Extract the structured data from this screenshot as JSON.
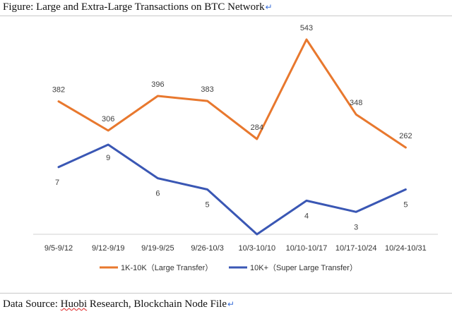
{
  "figure_title": "Figure: Large and Extra-Large Transactions on BTC Network",
  "paragraph_mark": "↵",
  "source": {
    "prefix": "Data Source: ",
    "underlined": "Huobi",
    "suffix": " Research, Blockchain Node File"
  },
  "colors": {
    "series_1": "#e8782e",
    "series_2": "#3a57b4",
    "axis": "#d0d0d0",
    "label": "#404040"
  },
  "chart_data": {
    "type": "line",
    "categories": [
      "9/5-9/12",
      "9/12-9/19",
      "9/19-9/25",
      "9/26-10/3",
      "10/3-10/10",
      "10/10-10/17",
      "10/17-10/24",
      "10/24-10/31"
    ],
    "series": [
      {
        "name": "1K-10K（Large Transfer）",
        "values": [
          382,
          306,
          396,
          383,
          284,
          543,
          348,
          262
        ]
      },
      {
        "name": "10K+（Super Large Transfer）",
        "values": [
          7,
          9,
          6,
          5,
          1,
          4,
          3,
          5
        ]
      }
    ],
    "data_labels": [
      [
        "382",
        "306",
        "396",
        "383",
        "284",
        "543",
        "348",
        "262"
      ],
      [
        "7",
        "9",
        "6",
        "5",
        "",
        "4",
        "3",
        "5"
      ]
    ],
    "legend_position": "bottom",
    "grid": false
  }
}
